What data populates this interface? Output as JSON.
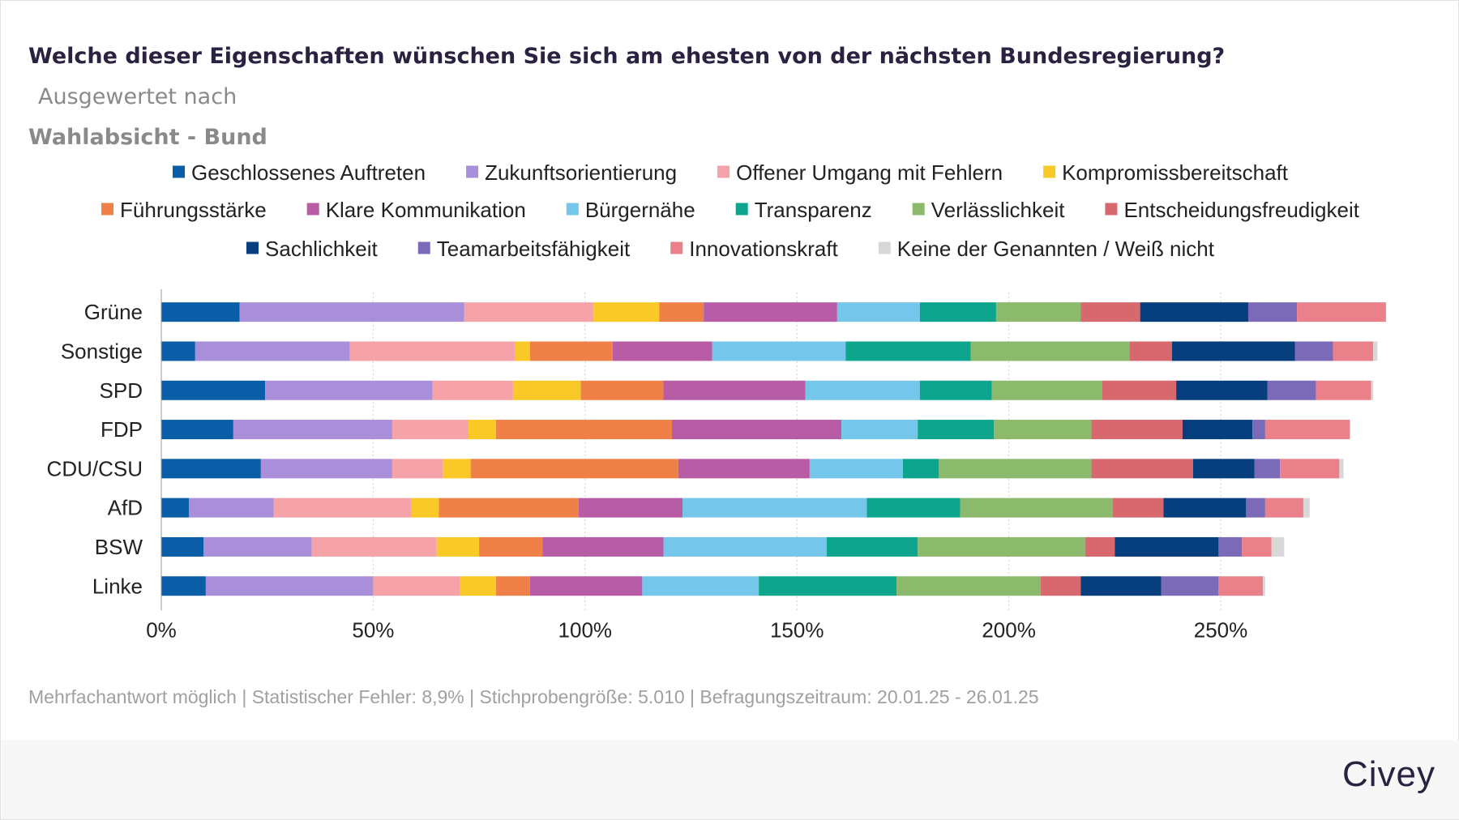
{
  "title": {
    "main": "Welche dieser Eigenschaften wünschen Sie sich am ehesten von der nächsten Bundesregierung?",
    "sub_part1": "Ausgewertet nach",
    "sub_part2": "Wahlabsicht - Bund"
  },
  "footer": {
    "note": "Mehrfachantwort möglich | Statistischer Fehler: 8,9% | Stichprobengröße: 5.010 | Befragungszeitraum: 20.01.25 - 26.01.25",
    "logo": "Civey"
  },
  "chart_data": {
    "type": "bar",
    "orientation": "horizontal",
    "stacked": true,
    "grid": true,
    "legend_position": "top",
    "xlim": [
      0,
      290
    ],
    "x_ticks": [
      0,
      50,
      100,
      150,
      200,
      250
    ],
    "x_tick_labels": [
      "0%",
      "50%",
      "100%",
      "150%",
      "200%",
      "250%"
    ],
    "categories": [
      "Grüne",
      "Sonstige",
      "SPD",
      "FDP",
      "CDU/CSU",
      "AfD",
      "BSW",
      "Linke"
    ],
    "series": [
      {
        "name": "Geschlossenes Auftreten",
        "color": "#0a5ea8",
        "values": [
          18.5,
          8,
          24.5,
          17,
          23.5,
          6.5,
          10,
          10.5
        ]
      },
      {
        "name": "Zukunftsorientierung",
        "color": "#a98fd9",
        "values": [
          53,
          36.5,
          39.5,
          37.5,
          31,
          20,
          25.5,
          39.5
        ]
      },
      {
        "name": "Offener Umgang mit Fehlern",
        "color": "#f5a3a9",
        "values": [
          30.5,
          39,
          19,
          18,
          12,
          32.5,
          29.5,
          20.5
        ]
      },
      {
        "name": "Kompromissbereitschaft",
        "color": "#f8c927",
        "values": [
          15.5,
          3.5,
          16,
          6.5,
          6.5,
          6.5,
          10,
          8.5
        ]
      },
      {
        "name": "Führungsstärke",
        "color": "#ef8048",
        "values": [
          10.5,
          19.5,
          19.5,
          41.5,
          49,
          33,
          15,
          8
        ]
      },
      {
        "name": "Klare Kommunikation",
        "color": "#b85ca5",
        "values": [
          31.5,
          23.5,
          33.5,
          40,
          31,
          24.5,
          28.5,
          26.5
        ]
      },
      {
        "name": "Bürgernähe",
        "color": "#74c7ea",
        "values": [
          19.5,
          31.5,
          27,
          18,
          22,
          43.5,
          38.5,
          27.5
        ]
      },
      {
        "name": "Transparenz",
        "color": "#0ea58e",
        "values": [
          18,
          29.5,
          17,
          18,
          8.5,
          22,
          21.5,
          32.5
        ]
      },
      {
        "name": "Verlässlichkeit",
        "color": "#8cba6c",
        "values": [
          20,
          37.5,
          26,
          23,
          36,
          36,
          39.5,
          34
        ]
      },
      {
        "name": "Entscheidungsfreudigkeit",
        "color": "#d7686d",
        "values": [
          14,
          10,
          17.5,
          21.5,
          24,
          12,
          7,
          9.5
        ]
      },
      {
        "name": "Sachlichkeit",
        "color": "#073e7e",
        "values": [
          25.5,
          29,
          21.5,
          16.5,
          14.5,
          19.5,
          24.5,
          19
        ]
      },
      {
        "name": "Teamarbeitsfähigkeit",
        "color": "#7b6ab8",
        "values": [
          11.5,
          9,
          11.5,
          3,
          6,
          4.5,
          5.5,
          13.5
        ]
      },
      {
        "name": "Innovationskraft",
        "color": "#ea8089",
        "values": [
          21,
          9.5,
          13,
          20,
          14,
          9,
          7,
          10.5
        ]
      },
      {
        "name": "Keine der Genannten / Weiß nicht",
        "color": "#d8d8d8",
        "values": [
          0,
          1,
          0.5,
          0,
          1,
          1.5,
          3,
          0.5
        ]
      }
    ]
  }
}
